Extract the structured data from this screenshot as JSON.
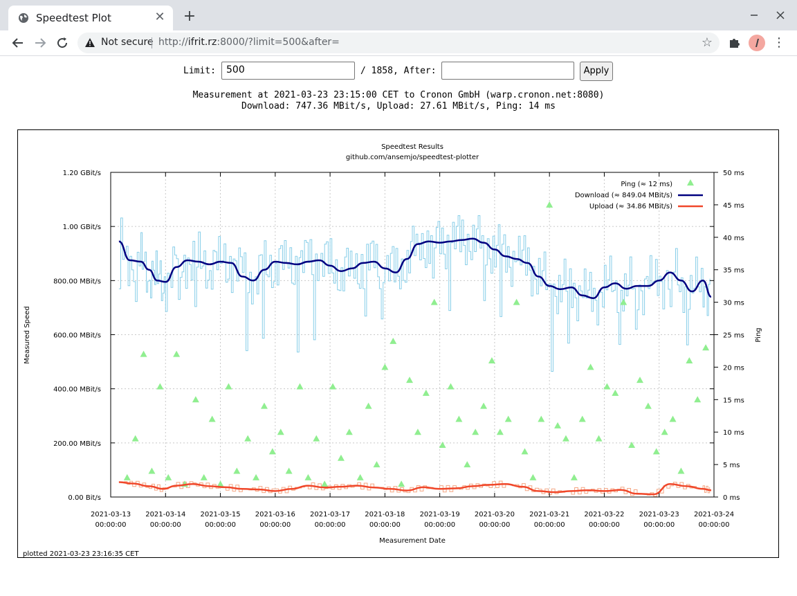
{
  "browser": {
    "tab_title": "Speedtest Plot",
    "close_glyph": "✕",
    "new_tab_glyph": "+",
    "security_label": "Not secure",
    "url_prefix": "http://",
    "url_host": "ifrit.rz",
    "url_rest": ":8000/?limit=500&after="
  },
  "form": {
    "limit_label": "Limit:",
    "limit_value": "500",
    "total_label": "/ 1858, After:",
    "after_value": "",
    "apply_label": "Apply"
  },
  "info": {
    "line1": "Measurement at 2021-03-23 23:15:00 CET to Cronon GmbH (warp.cronon.net:8080)",
    "line2": "Download: 747.36 MBit/s, Upload: 27.61 MBit/s, Ping: 14 ms"
  },
  "colors": {
    "download_raw": "#87cee8",
    "download_smooth": "#000080",
    "upload_raw": "#f4a582",
    "upload_smooth": "#f0472a",
    "ping": "#90ee90"
  },
  "chart_data": {
    "type": "line",
    "title": "Speedtest Results",
    "subtitle": "github.com/ansemjo/speedtest-plotter",
    "xlabel": "Measurement Date",
    "ylabel": "Measured Speed",
    "y2label": "Ping",
    "footer": "plotted 2021-03-23 23:16:35 CET",
    "x_ticks": [
      [
        "2021-03-13",
        "00:00:00"
      ],
      [
        "2021-03-14",
        "00:00:00"
      ],
      [
        "2021-03-15",
        "00:00:00"
      ],
      [
        "2021-03-16",
        "00:00:00"
      ],
      [
        "2021-03-17",
        "00:00:00"
      ],
      [
        "2021-03-18",
        "00:00:00"
      ],
      [
        "2021-03-19",
        "00:00:00"
      ],
      [
        "2021-03-20",
        "00:00:00"
      ],
      [
        "2021-03-21",
        "00:00:00"
      ],
      [
        "2021-03-22",
        "00:00:00"
      ],
      [
        "2021-03-23",
        "00:00:00"
      ],
      [
        "2021-03-24",
        "00:00:00"
      ]
    ],
    "y_ticks": [
      "0.00  Bit/s",
      "200.00 MBit/s",
      "400.00 MBit/s",
      "600.00 MBit/s",
      "800.00 MBit/s",
      "1.00 GBit/s",
      "1.20 GBit/s"
    ],
    "y_tick_values_mbit": [
      0,
      200,
      400,
      600,
      800,
      1000,
      1200
    ],
    "y2_ticks": [
      "0 ms",
      "5 ms",
      "10 ms",
      "15 ms",
      "20 ms",
      "25 ms",
      "30 ms",
      "35 ms",
      "40 ms",
      "45 ms",
      "50 ms"
    ],
    "y2_tick_values_ms": [
      0,
      5,
      10,
      15,
      20,
      25,
      30,
      35,
      40,
      45,
      50
    ],
    "x_range_days": [
      0,
      11
    ],
    "y_range_mbit": [
      0,
      1200
    ],
    "y2_range_ms": [
      0,
      50
    ],
    "grid": true,
    "legend_position": "top-right",
    "legend": [
      {
        "label": "Ping (≈ 12 ms)",
        "kind": "ping"
      },
      {
        "label": "Download (≈ 849.04 MBit/s)",
        "kind": "download"
      },
      {
        "label": "Upload (≈ 34.86 MBit/s)",
        "kind": "upload"
      }
    ],
    "series": [
      {
        "name": "Download (≈ 849.04 MBit/s)",
        "x": [
          0.15,
          0.35,
          0.55,
          0.7,
          0.85,
          1.0,
          1.2,
          1.4,
          1.6,
          1.8,
          2.0,
          2.2,
          2.4,
          2.6,
          2.8,
          3.0,
          3.2,
          3.4,
          3.6,
          3.8,
          4.0,
          4.2,
          4.4,
          4.6,
          4.8,
          5.0,
          5.2,
          5.4,
          5.6,
          5.8,
          6.0,
          6.2,
          6.4,
          6.6,
          6.8,
          7.0,
          7.2,
          7.4,
          7.6,
          7.8,
          8.0,
          8.2,
          8.4,
          8.6,
          8.8,
          9.0,
          9.2,
          9.4,
          9.6,
          9.8,
          10.0,
          10.2,
          10.4,
          10.6,
          10.8,
          10.95
        ],
        "y": [
          945,
          875,
          870,
          840,
          800,
          795,
          850,
          875,
          870,
          860,
          870,
          865,
          815,
          800,
          840,
          870,
          865,
          860,
          870,
          875,
          855,
          835,
          845,
          865,
          870,
          845,
          830,
          880,
          935,
          945,
          940,
          945,
          950,
          955,
          940,
          915,
          890,
          880,
          865,
          815,
          780,
          768,
          775,
          745,
          735,
          775,
          790,
          770,
          780,
          780,
          800,
          830,
          800,
          760,
          800,
          740
        ]
      },
      {
        "name": "Upload (≈ 34.86 MBit/s)",
        "x": [
          0.15,
          0.4,
          0.7,
          0.95,
          1.2,
          1.5,
          1.8,
          2.1,
          2.4,
          2.7,
          3.0,
          3.3,
          3.6,
          3.9,
          4.2,
          4.5,
          4.8,
          5.1,
          5.4,
          5.7,
          6.0,
          6.3,
          6.6,
          6.9,
          7.2,
          7.5,
          7.8,
          8.1,
          8.4,
          8.7,
          9.0,
          9.3,
          9.6,
          9.9,
          10.2,
          10.5,
          10.8,
          10.95
        ],
        "y": [
          55,
          50,
          40,
          30,
          42,
          48,
          40,
          36,
          30,
          28,
          22,
          30,
          42,
          35,
          38,
          42,
          35,
          30,
          24,
          36,
          30,
          32,
          40,
          45,
          48,
          38,
          22,
          18,
          22,
          25,
          22,
          26,
          12,
          10,
          48,
          40,
          30,
          25
        ]
      }
    ],
    "ping_ms": {
      "x": [
        0.3,
        0.45,
        0.6,
        0.75,
        0.9,
        1.05,
        1.2,
        1.35,
        1.55,
        1.7,
        1.85,
        2.0,
        2.15,
        2.3,
        2.5,
        2.65,
        2.8,
        2.95,
        3.1,
        3.25,
        3.45,
        3.6,
        3.75,
        3.9,
        4.05,
        4.2,
        4.35,
        4.55,
        4.7,
        4.85,
        5.0,
        5.15,
        5.3,
        5.45,
        5.6,
        5.75,
        5.9,
        6.05,
        6.2,
        6.35,
        6.5,
        6.65,
        6.8,
        6.95,
        7.1,
        7.25,
        7.4,
        7.55,
        7.7,
        7.85,
        8.0,
        8.15,
        8.3,
        8.45,
        8.6,
        8.75,
        8.9,
        9.05,
        9.2,
        9.35,
        9.5,
        9.65,
        9.8,
        9.95,
        10.1,
        10.25,
        10.4,
        10.55,
        10.7,
        10.85
      ],
      "y": [
        3,
        9,
        22,
        4,
        17,
        3,
        22,
        2,
        15,
        3,
        12,
        2,
        17,
        4,
        9,
        3,
        14,
        7,
        10,
        4,
        17,
        3,
        9,
        2,
        17,
        6,
        10,
        3,
        14,
        5,
        20,
        24,
        2,
        18,
        10,
        16,
        30,
        8,
        17,
        12,
        5,
        10,
        14,
        21,
        10,
        12,
        30,
        7,
        3,
        12,
        45,
        11,
        9,
        3,
        12,
        20,
        9,
        17,
        16,
        30,
        8,
        18,
        14,
        7,
        10,
        12,
        4,
        21,
        15,
        23
      ]
    }
  }
}
